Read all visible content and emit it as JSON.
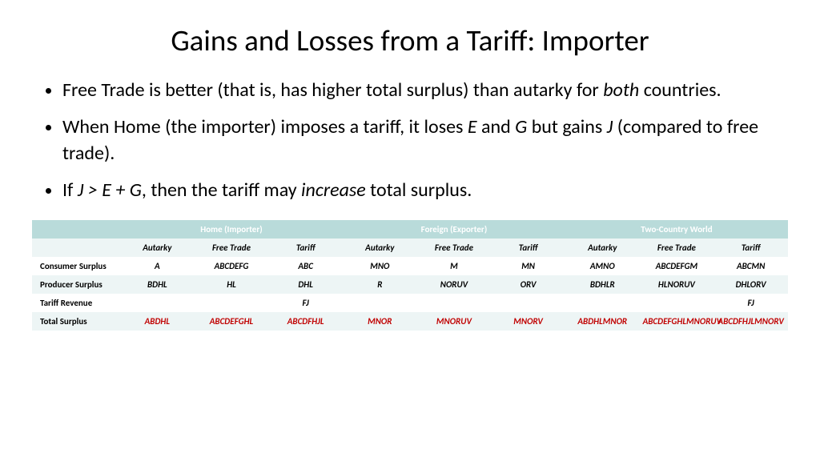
{
  "title": "Gains and Losses from a Tariff: Importer",
  "bullets": [
    {
      "pre": "Free Trade is better (that is, has higher total surplus) than autarky for ",
      "em": "both",
      "post": " countries."
    },
    {
      "pre": "When Home (the importer) imposes a tariff, it loses ",
      "em": "E",
      "mid": " and ",
      "em2": "G",
      "mid2": " but gains ",
      "em3": "J",
      "post": " (compared to free trade)."
    },
    {
      "pre": "If ",
      "em": "J > E + G",
      "mid": ", then the tariff may ",
      "em2": "increase",
      "post": " total surplus."
    }
  ],
  "table": {
    "groupHeaders": [
      "Home (Importer)",
      "Foreign (Exporter)",
      "Two-Country World"
    ],
    "subHeaders": [
      "Autarky",
      "Free Trade",
      "Tariff",
      "Autarky",
      "Free Trade",
      "Tariff",
      "Autarky",
      "Free Trade",
      "Tariff"
    ],
    "rows": [
      {
        "label": "Consumer Surplus",
        "cells": [
          "A",
          "ABCDEFG",
          "ABC",
          "MNO",
          "M",
          "MN",
          "AMNO",
          "ABCDEFGM",
          "ABCMN"
        ]
      },
      {
        "label": "Producer Surplus",
        "cells": [
          "BDHL",
          "HL",
          "DHL",
          "R",
          "NORUV",
          "ORV",
          "BDHLR",
          "HLNORUV",
          "DHLORV"
        ]
      },
      {
        "label": "Tariff Revenue",
        "cells": [
          "",
          "",
          "FJ",
          "",
          "",
          "",
          "",
          "",
          "FJ"
        ]
      },
      {
        "label": "Total Surplus",
        "cells": [
          "ABDHL",
          "ABCDEFGHL",
          "ABCDFHJL",
          "MNOR",
          "MNORUV",
          "MNORV",
          "ABDHLMNOR",
          "ABCDEFGHLMNORUV",
          "ABCDFHJLMNORV"
        ],
        "total": true
      }
    ],
    "colors": {
      "headerBg": "#b9dbda",
      "altBg": "#edf5f5",
      "totalColor": "#c00000"
    }
  }
}
